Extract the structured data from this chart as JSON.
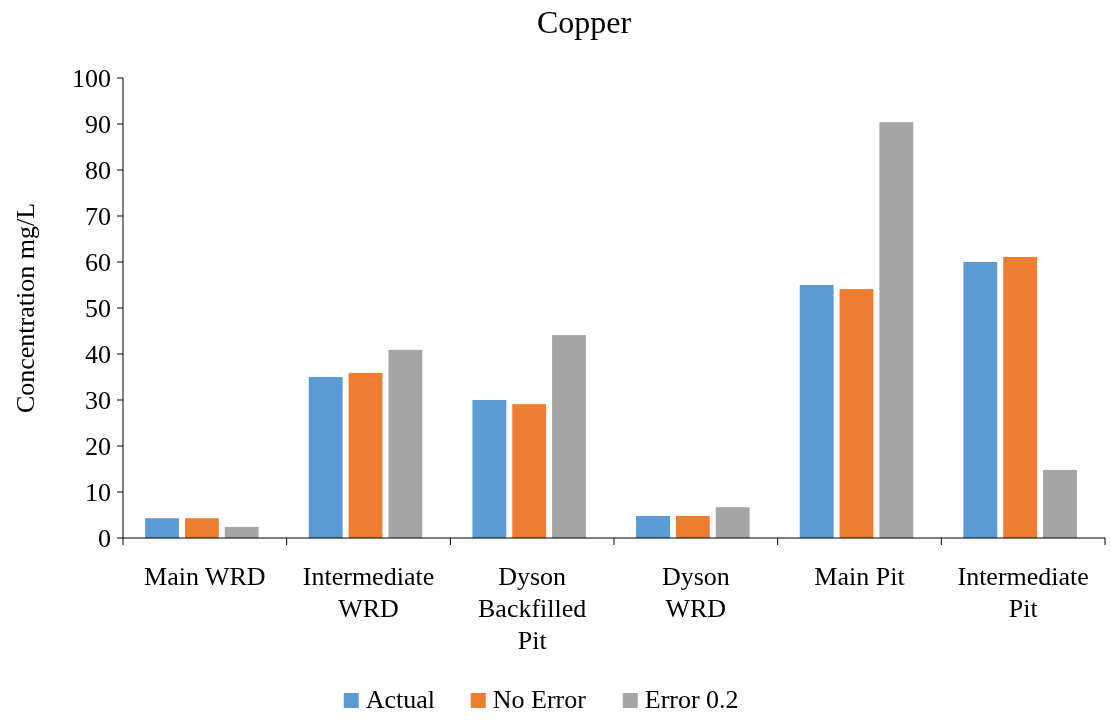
{
  "chart_data": {
    "type": "bar",
    "title": "Copper",
    "ylabel": "Concentration mg/L",
    "categories": [
      "Main WRD",
      "Intermediate WRD",
      "Dyson Backfilled Pit",
      "Dyson WRD",
      "Main Pit",
      "Intermediate Pit"
    ],
    "series": [
      {
        "name": "Actual",
        "color": "#5b9bd5",
        "values": [
          4.3,
          35.0,
          30.0,
          4.8,
          55.0,
          60.0
        ]
      },
      {
        "name": "No Error",
        "color": "#ed7d31",
        "values": [
          4.3,
          35.9,
          29.1,
          4.8,
          54.1,
          61.1
        ]
      },
      {
        "name": "Error 0.2",
        "color": "#a5a5a5",
        "values": [
          2.4,
          40.9,
          44.1,
          6.7,
          90.4,
          14.8
        ]
      }
    ],
    "ylim": [
      0,
      100
    ],
    "yticks": [
      0,
      10,
      20,
      30,
      40,
      50,
      60,
      70,
      80,
      90,
      100
    ],
    "grid": false,
    "legend": "bottom"
  }
}
